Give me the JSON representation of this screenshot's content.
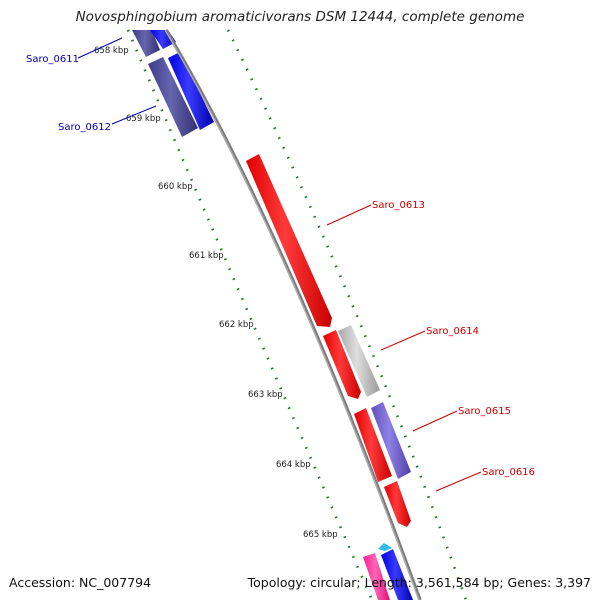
{
  "title": "Novosphingobium aromaticivorans DSM 12444, complete genome",
  "footer": {
    "accession": "Accession: NC_007794",
    "summary": "Topology: circular; Length: 3,561,584 bp; Genes: 3,397"
  },
  "ticks": [
    "658 kbp",
    "659 kbp",
    "660 kbp",
    "661 kbp",
    "662 kbp",
    "663 kbp",
    "664 kbp",
    "665 kbp"
  ],
  "genes": [
    {
      "label": "Saro_0611",
      "color": "#0000aa"
    },
    {
      "label": "Saro_0612",
      "color": "#0000aa"
    },
    {
      "label": "Saro_0613",
      "color": "#cc0000"
    },
    {
      "label": "Saro_0614",
      "color": "#cc0000"
    },
    {
      "label": "Saro_0615",
      "color": "#cc0000"
    },
    {
      "label": "Saro_0616",
      "color": "#cc0000"
    }
  ],
  "colors": {
    "backbone": "#888888",
    "ruler": "#1e7d1e",
    "reverse_strand": "#0000ee",
    "forward_strand": "#ff0000",
    "reverse_shaded": "#4a4a9a",
    "pseudo": "#c0c0c0",
    "violet": "#7060d0",
    "magenta": "#ff2a9a",
    "cyan": "#33bbee"
  }
}
